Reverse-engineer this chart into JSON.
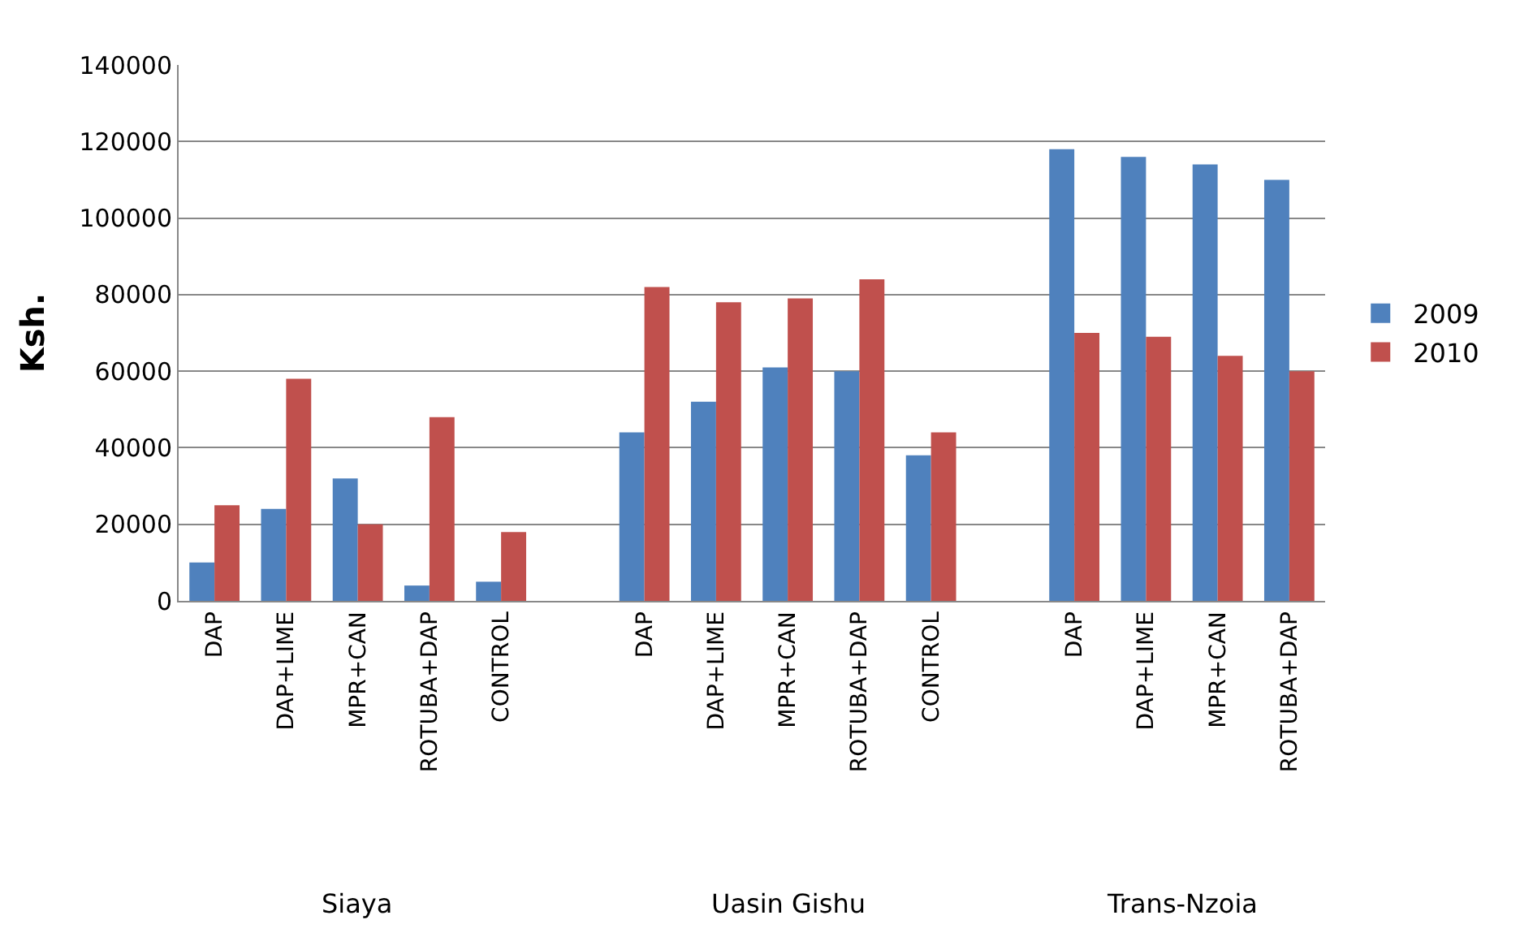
{
  "chart_data": {
    "type": "bar",
    "ylabel": "Ksh.",
    "categories": [
      "DAP",
      "DAP+LIME",
      "MPR+CAN",
      "ROTUBA+DAP",
      "CONTROL",
      null,
      "DAP",
      "DAP+LIME",
      "MPR+CAN",
      "ROTUBA+DAP",
      "CONTROL",
      null,
      "DAP",
      "DAP+LIME",
      "MPR+CAN",
      "ROTUBA+DAP"
    ],
    "series": [
      {
        "name": "2009",
        "color": "#4f81bd",
        "values": [
          10000,
          24000,
          32000,
          4000,
          5000,
          null,
          44000,
          52000,
          61000,
          60000,
          38000,
          null,
          118000,
          116000,
          114000,
          110000
        ]
      },
      {
        "name": "2010",
        "color": "#c0504d",
        "values": [
          25000,
          58000,
          20000,
          48000,
          18000,
          null,
          82000,
          78000,
          79000,
          84000,
          44000,
          null,
          70000,
          69000,
          64000,
          60000
        ]
      }
    ],
    "annotations": [
      "Siaya",
      "Uasin Gishu",
      "Trans-Nzoia"
    ],
    "ylim": [
      0,
      140000
    ],
    "yticks": [
      0,
      20000,
      40000,
      60000,
      80000,
      100000,
      120000,
      140000
    ],
    "grid": "y",
    "legend": "right"
  }
}
